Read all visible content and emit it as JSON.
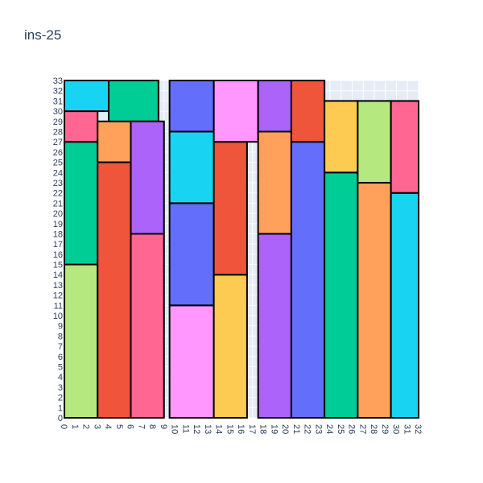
{
  "chart_data": {
    "type": "bar",
    "title": "ins-25",
    "xlabel": "",
    "ylabel": "",
    "xlim": [
      0,
      32
    ],
    "ylim": [
      0,
      33
    ],
    "x_ticks": [
      0,
      1,
      2,
      3,
      4,
      5,
      6,
      7,
      8,
      9,
      10,
      11,
      12,
      13,
      14,
      15,
      16,
      17,
      18,
      19,
      20,
      21,
      22,
      23,
      24,
      25,
      26,
      27,
      28,
      29,
      30,
      31,
      32
    ],
    "y_ticks": [
      0,
      1,
      2,
      3,
      4,
      5,
      6,
      7,
      8,
      9,
      10,
      11,
      12,
      13,
      14,
      15,
      16,
      17,
      18,
      19,
      20,
      21,
      22,
      23,
      24,
      25,
      26,
      27,
      28,
      29,
      30,
      31,
      32,
      33
    ],
    "grid": true,
    "background": "#e5ecf6",
    "rectangles": [
      {
        "x0": 0,
        "x1": 3,
        "y0": 0,
        "y1": 15,
        "color": "#b6e880"
      },
      {
        "x0": 0,
        "x1": 3,
        "y0": 15,
        "y1": 27,
        "color": "#00cc96"
      },
      {
        "x0": 0,
        "x1": 3,
        "y0": 27,
        "y1": 30,
        "color": "#ff6692"
      },
      {
        "x0": 0,
        "x1": 4,
        "y0": 30,
        "y1": 33,
        "color": "#19d3f3"
      },
      {
        "x0": 3,
        "x1": 6,
        "y0": 0,
        "y1": 25,
        "color": "#ef553b"
      },
      {
        "x0": 3,
        "x1": 6,
        "y0": 25,
        "y1": 29,
        "color": "#ffa15a"
      },
      {
        "x0": 4,
        "x1": 8.5,
        "y0": 29,
        "y1": 33,
        "color": "#00cc96"
      },
      {
        "x0": 6,
        "x1": 9,
        "y0": 0,
        "y1": 18,
        "color": "#ff6692"
      },
      {
        "x0": 6,
        "x1": 9,
        "y0": 18,
        "y1": 29,
        "color": "#ab63fa"
      },
      {
        "x0": 9.5,
        "x1": 13.5,
        "y0": 0,
        "y1": 11,
        "color": "#ff97ff"
      },
      {
        "x0": 9.5,
        "x1": 13.5,
        "y0": 11,
        "y1": 21,
        "color": "#636efa"
      },
      {
        "x0": 9.5,
        "x1": 13.5,
        "y0": 21,
        "y1": 28,
        "color": "#19d3f3"
      },
      {
        "x0": 9.5,
        "x1": 13.5,
        "y0": 28,
        "y1": 33,
        "color": "#636efa"
      },
      {
        "x0": 13.5,
        "x1": 16.5,
        "y0": 0,
        "y1": 14,
        "color": "#fecb52"
      },
      {
        "x0": 13.5,
        "x1": 16.5,
        "y0": 14,
        "y1": 27,
        "color": "#ef553b"
      },
      {
        "x0": 13.5,
        "x1": 17.5,
        "y0": 27,
        "y1": 33,
        "color": "#ff97ff"
      },
      {
        "x0": 17.5,
        "x1": 20.5,
        "y0": 0,
        "y1": 18,
        "color": "#ab63fa"
      },
      {
        "x0": 17.5,
        "x1": 20.5,
        "y0": 18,
        "y1": 28,
        "color": "#ffa15a"
      },
      {
        "x0": 17.5,
        "x1": 20.5,
        "y0": 28,
        "y1": 33,
        "color": "#ab63fa"
      },
      {
        "x0": 20.5,
        "x1": 23.5,
        "y0": 0,
        "y1": 27,
        "color": "#636efa"
      },
      {
        "x0": 20.5,
        "x1": 23.5,
        "y0": 27,
        "y1": 33,
        "color": "#ef553b"
      },
      {
        "x0": 23.5,
        "x1": 26.5,
        "y0": 0,
        "y1": 24,
        "color": "#00cc96"
      },
      {
        "x0": 23.5,
        "x1": 26.5,
        "y0": 24,
        "y1": 31,
        "color": "#fecb52"
      },
      {
        "x0": 26.5,
        "x1": 29.5,
        "y0": 0,
        "y1": 23,
        "color": "#ffa15a"
      },
      {
        "x0": 26.5,
        "x1": 29.5,
        "y0": 23,
        "y1": 31,
        "color": "#b6e880"
      },
      {
        "x0": 29.5,
        "x1": 32.5,
        "y0": 0,
        "y1": 22,
        "color": "#19d3f3"
      },
      {
        "x0": 29.5,
        "x1": 32.5,
        "y0": 22,
        "y1": 31,
        "color": "#ff6692"
      }
    ]
  }
}
